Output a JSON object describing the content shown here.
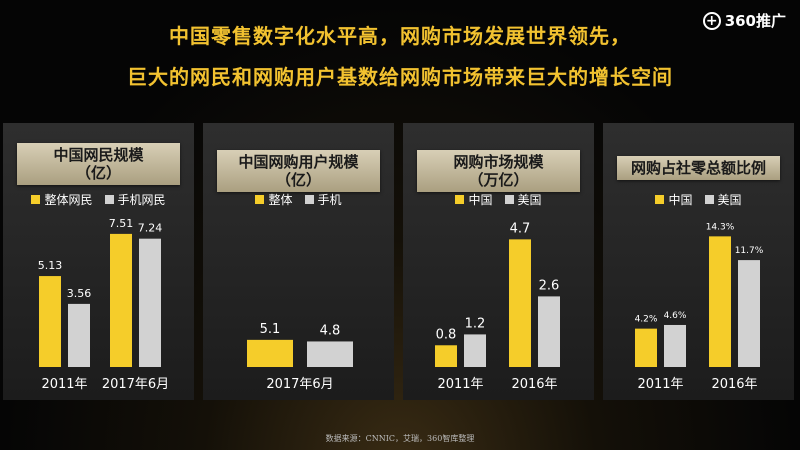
{
  "logo": {
    "mark": "+",
    "text": "360推广"
  },
  "headline": {
    "line1": "中国零售数字化水平高，网购市场发展世界领先，",
    "line2": "巨大的网民和网购用户基数给网购市场带来巨大的增长空间"
  },
  "colors": {
    "accent": "#f5cd2a",
    "secondary": "#d2d2d2",
    "title_text": "#f2c230"
  },
  "source": "数据来源：CNNIC，艾瑞，360智库整理",
  "chart_data": [
    {
      "type": "bar",
      "title_lines": [
        "中国网民规模",
        "（亿）"
      ],
      "categories": [
        "2011年",
        "2017年6月"
      ],
      "series": [
        {
          "name": "整体网民",
          "color": "#f5cd2a",
          "values": [
            5.13,
            7.51
          ],
          "labels": [
            "5.13",
            "7.51"
          ]
        },
        {
          "name": "手机网民",
          "color": "#d2d2d2",
          "values": [
            3.56,
            7.24
          ],
          "labels": [
            "3.56",
            "7.24"
          ]
        }
      ],
      "ylim": [
        0,
        8.35
      ]
    },
    {
      "type": "bar",
      "title_lines": [
        "中国网购用户规模",
        "（亿）"
      ],
      "categories": [
        "2017年6月"
      ],
      "series": [
        {
          "name": "整体",
          "color": "#f5cd2a",
          "values": [
            5.1
          ],
          "labels": [
            "5.1"
          ]
        },
        {
          "name": "手机",
          "color": "#d2d2d2",
          "values": [
            4.8
          ],
          "labels": [
            "4.8"
          ]
        }
      ],
      "ylim": [
        0,
        27.8
      ]
    },
    {
      "type": "bar",
      "title_lines": [
        "网购市场规模",
        "（万亿）"
      ],
      "categories": [
        "2011年",
        "2016年"
      ],
      "series": [
        {
          "name": "中国",
          "color": "#f5cd2a",
          "values": [
            0.8,
            4.7
          ],
          "labels": [
            "0.8",
            "4.7"
          ]
        },
        {
          "name": "美国",
          "color": "#d2d2d2",
          "values": [
            1.2,
            2.6
          ],
          "labels": [
            "1.2",
            "2.6"
          ]
        }
      ],
      "ylim": [
        0,
        5.45
      ]
    },
    {
      "type": "bar",
      "title_lines": [
        "网购占社零总额比例"
      ],
      "categories": [
        "2011年",
        "2016年"
      ],
      "series": [
        {
          "name": "中国",
          "color": "#f5cd2a",
          "values": [
            4.2,
            14.3
          ],
          "labels": [
            "4.2%",
            "14.3%"
          ]
        },
        {
          "name": "美国",
          "color": "#d2d2d2",
          "values": [
            4.6,
            11.7
          ],
          "labels": [
            "4.6%",
            "11.7%"
          ]
        }
      ],
      "ylim": [
        0,
        16.2
      ]
    }
  ]
}
